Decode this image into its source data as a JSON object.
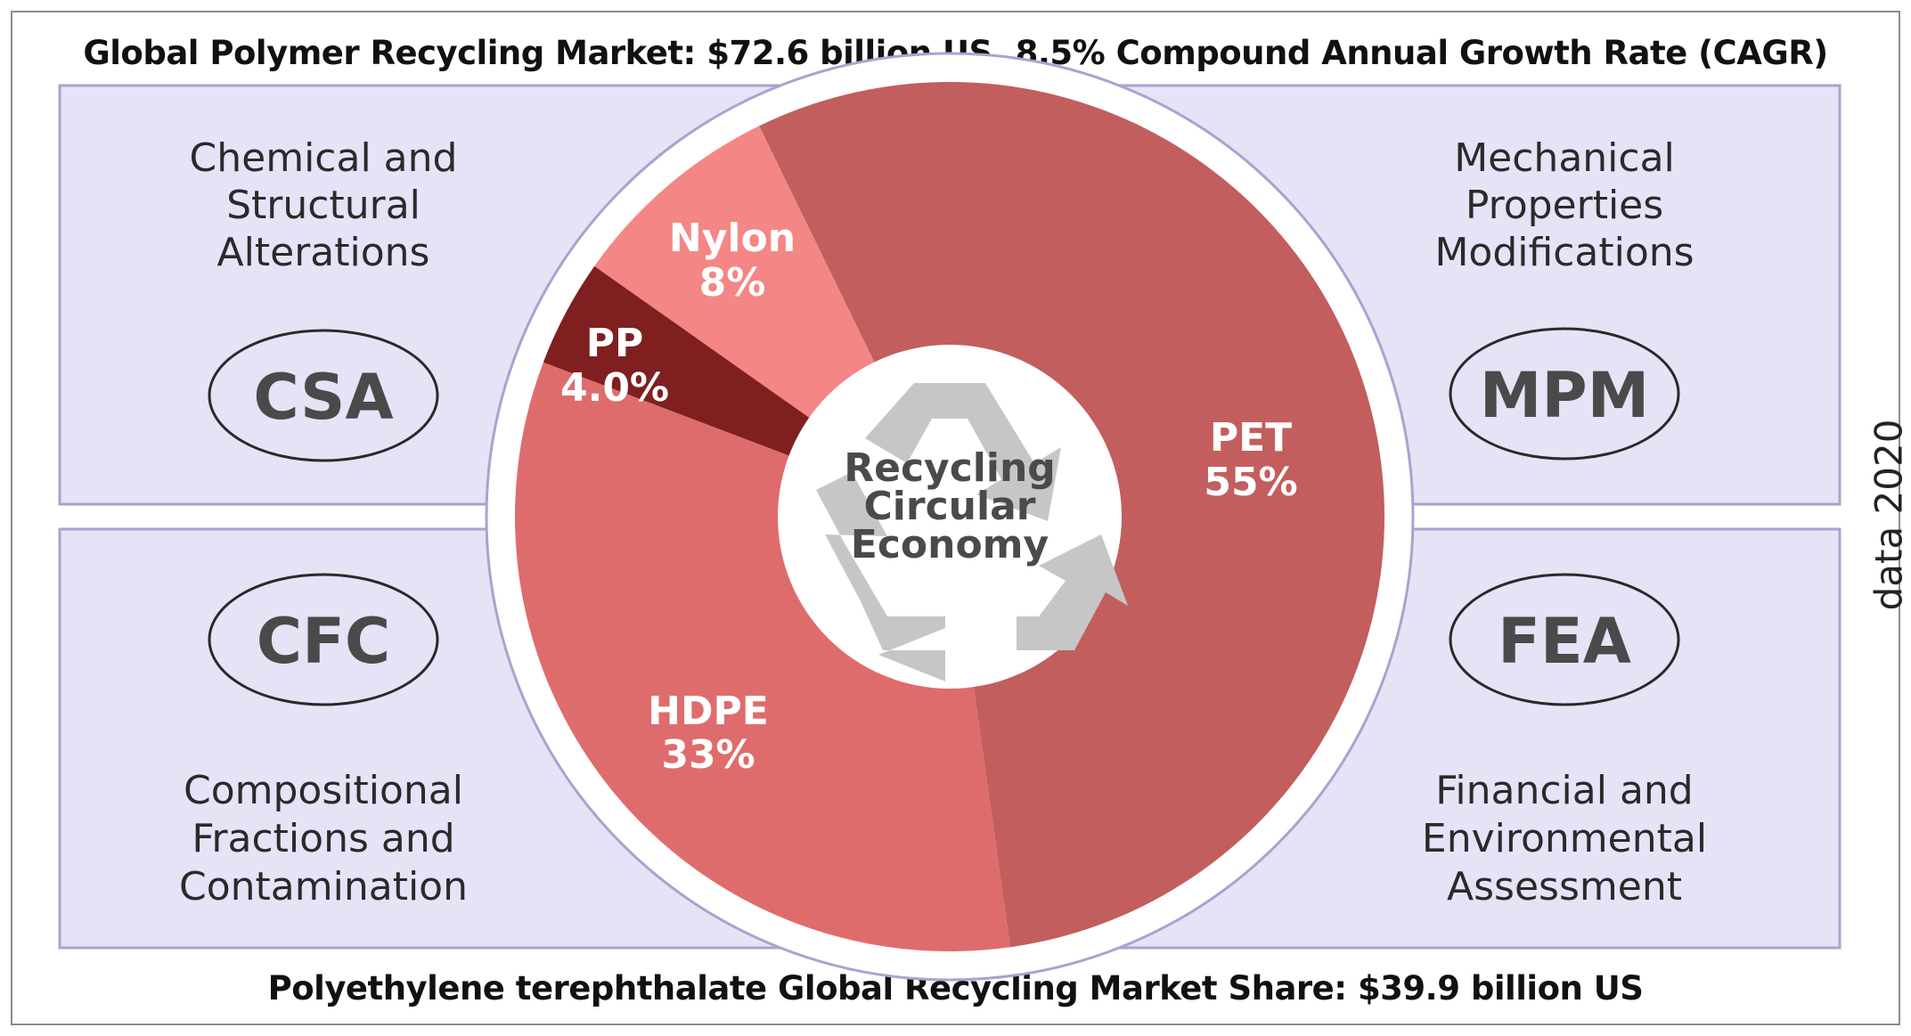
{
  "header": {
    "title": "Global Polymer Recycling Market: $72.6 billion US, 8.5% Compound Annual Growth Rate (CAGR)"
  },
  "footer": {
    "title": "Polyethylene terephthalate Global Recycling Market Share: $39.9 billion US"
  },
  "side_note": "data 2020",
  "panels": {
    "top_left": {
      "abbr": "CSA",
      "lines": [
        "Chemical and",
        "Structural",
        "Alterations"
      ]
    },
    "top_right": {
      "abbr": "MPM",
      "lines": [
        "Mechanical",
        "Properties",
        "Modifications"
      ]
    },
    "bottom_left": {
      "abbr": "CFC",
      "lines": [
        "Compositional",
        "Fractions and",
        "Contamination"
      ]
    },
    "bottom_right": {
      "abbr": "FEA",
      "lines": [
        "Financial and",
        "Environmental",
        "Assessment"
      ]
    }
  },
  "center": {
    "lines": [
      "Recycling",
      "Circular",
      "Economy"
    ],
    "icon": "recycle-icon"
  },
  "colors": {
    "panel_bg": "#e6e3f7",
    "panel_border": "#a9a3cf"
  },
  "chart_data": {
    "type": "pie",
    "slices": [
      {
        "name": "PET",
        "value": 55,
        "label": "55%",
        "color": "#c25e5e"
      },
      {
        "name": "HDPE",
        "value": 33,
        "label": "33%",
        "color": "#df6c6c"
      },
      {
        "name": "PP",
        "value": 4.0,
        "label": "4.0%",
        "color": "#7f1f1f"
      },
      {
        "name": "Nylon",
        "value": 8,
        "label": "8%",
        "color": "#f48685"
      }
    ]
  }
}
